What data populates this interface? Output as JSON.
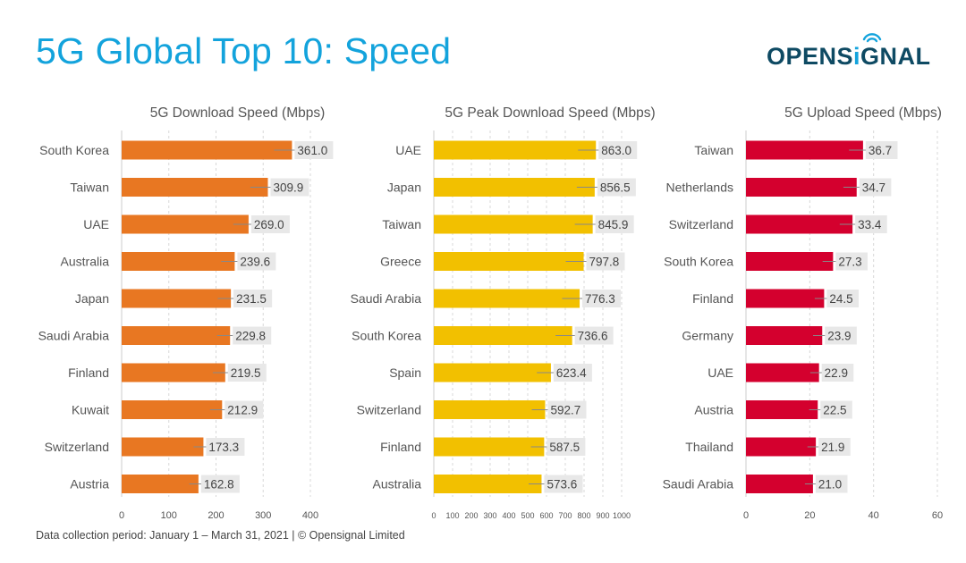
{
  "header": {
    "title": "5G Global Top 10: Speed",
    "logo_text_left": "OPENS",
    "logo_text_i": "i",
    "logo_text_right": "GNAL"
  },
  "footer": {
    "note": "Data collection period: January 1 – March 31, 2021  |  © Opensignal Limited"
  },
  "colors": {
    "title": "#13a3dc",
    "logo": "#0e4a63",
    "logo_signal": "#13a3dc",
    "download": "#e87722",
    "peak": "#f2c000",
    "upload": "#d4002e",
    "label_bg": "#e8e8e8",
    "grid": "#d8d8d8",
    "whisker": "#888888"
  },
  "chart_data": [
    {
      "type": "bar",
      "orientation": "horizontal",
      "title": "5G Download Speed (Mbps)",
      "xlabel": "",
      "ylabel": "",
      "categories": [
        "South Korea",
        "Taiwan",
        "UAE",
        "Australia",
        "Japan",
        "Saudi Arabia",
        "Finland",
        "Kuwait",
        "Switzerland",
        "Austria"
      ],
      "values": [
        361.0,
        309.9,
        269.0,
        239.6,
        231.5,
        229.8,
        219.5,
        212.9,
        173.3,
        162.8
      ],
      "value_labels": [
        "361.0",
        "309.9",
        "269.0",
        "239.6",
        "231.5",
        "229.8",
        "219.5",
        "212.9",
        "173.3",
        "162.8"
      ],
      "xlim": [
        0,
        400
      ],
      "xticks": [
        0,
        100,
        200,
        300,
        400
      ],
      "grid": true,
      "legend": "none",
      "color_key": "download"
    },
    {
      "type": "bar",
      "orientation": "horizontal",
      "title": "5G Peak Download Speed (Mbps)",
      "xlabel": "",
      "ylabel": "",
      "categories": [
        "UAE",
        "Japan",
        "Taiwan",
        "Greece",
        "Saudi Arabia",
        "South Korea",
        "Spain",
        "Switzerland",
        "Finland",
        "Australia"
      ],
      "values": [
        863.0,
        856.5,
        845.9,
        797.8,
        776.3,
        736.6,
        623.4,
        592.7,
        587.5,
        573.6
      ],
      "value_labels": [
        "863.0",
        "856.5",
        "845.9",
        "797.8",
        "776.3",
        "736.6",
        "623.4",
        "592.7",
        "587.5",
        "573.6"
      ],
      "xlim": [
        0,
        1000
      ],
      "xticks": [
        0,
        100,
        200,
        300,
        400,
        500,
        600,
        700,
        800,
        900,
        1000
      ],
      "grid": true,
      "legend": "none",
      "color_key": "peak"
    },
    {
      "type": "bar",
      "orientation": "horizontal",
      "title": "5G Upload Speed (Mbps)",
      "xlabel": "",
      "ylabel": "",
      "categories": [
        "Taiwan",
        "Netherlands",
        "Switzerland",
        "South Korea",
        "Finland",
        "Germany",
        "UAE",
        "Austria",
        "Thailand",
        "Saudi Arabia"
      ],
      "values": [
        36.7,
        34.7,
        33.4,
        27.3,
        24.5,
        23.9,
        22.9,
        22.5,
        21.9,
        21.0
      ],
      "value_labels": [
        "36.7",
        "34.7",
        "33.4",
        "27.3",
        "24.5",
        "23.9",
        "22.9",
        "22.5",
        "21.9",
        "21.0"
      ],
      "xlim": [
        0,
        60
      ],
      "xticks": [
        0,
        20,
        40,
        60
      ],
      "grid": true,
      "legend": "none",
      "color_key": "upload"
    }
  ]
}
